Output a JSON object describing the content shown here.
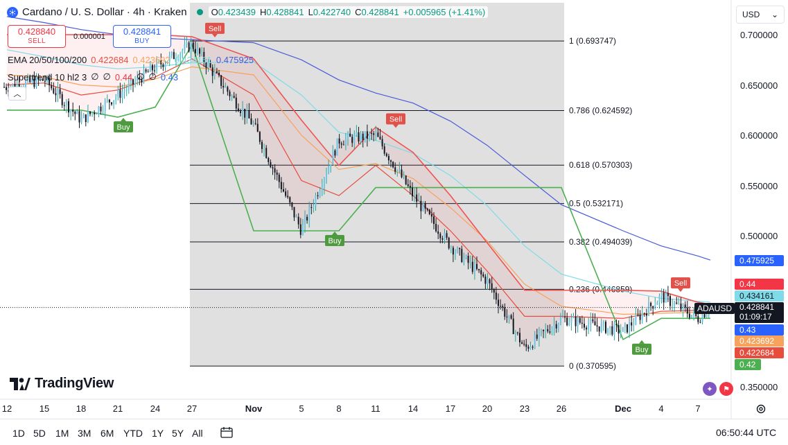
{
  "header": {
    "title": "Cardano / U. S. Dollar · 4h · Kraken",
    "ohlc": {
      "o_label": "O",
      "o_value": "0.423439",
      "h_label": "H",
      "h_value": "0.428841",
      "l_label": "L",
      "l_value": "0.422740",
      "c_label": "C",
      "c_value": "0.428841",
      "change": "+0.005965 (+1.41%)"
    }
  },
  "trade": {
    "sell_price": "0.428840",
    "sell_label": "SELL",
    "spread": "0.000001",
    "buy_price": "0.428841",
    "buy_label": "BUY"
  },
  "indicators": {
    "ema_name": "EMA 20/50/100/200",
    "ema_values": [
      "0.422684",
      "0.423692",
      "0.434161",
      "0.475925"
    ],
    "st_name": "Supertrend 10 hl2 3",
    "st_values": [
      "0.44",
      "0.43"
    ],
    "na_glyph": "∅"
  },
  "currency": {
    "label": "USD",
    "chevron": "⌄"
  },
  "price_axis": [
    "0.700000",
    "0.650000",
    "0.600000",
    "0.550000",
    "0.500000",
    "0.350000"
  ],
  "time_axis": [
    {
      "label": "12",
      "bold": false
    },
    {
      "label": "15",
      "bold": false
    },
    {
      "label": "18",
      "bold": false
    },
    {
      "label": "21",
      "bold": false
    },
    {
      "label": "24",
      "bold": false
    },
    {
      "label": "27",
      "bold": false
    },
    {
      "label": "Nov",
      "bold": true
    },
    {
      "label": "5",
      "bold": false
    },
    {
      "label": "8",
      "bold": false
    },
    {
      "label": "11",
      "bold": false
    },
    {
      "label": "14",
      "bold": false
    },
    {
      "label": "17",
      "bold": false
    },
    {
      "label": "20",
      "bold": false
    },
    {
      "label": "23",
      "bold": false
    },
    {
      "label": "26",
      "bold": false
    },
    {
      "label": "Dec",
      "bold": true
    },
    {
      "label": "4",
      "bold": false
    },
    {
      "label": "7",
      "bold": false
    }
  ],
  "price_tags": {
    "ema200": "0.475925",
    "st_up": "0.44",
    "ema100": "0.434161",
    "last": "0.428841",
    "symbol": "ADAUSD",
    "countdown": "01:09:17",
    "st_down": "0.43",
    "ema50": "0.423692",
    "ema20": "0.422684",
    "low": "0.42"
  },
  "logo": {
    "text": "TradingView"
  },
  "bottom_bar": {
    "ranges": [
      "1D",
      "5D",
      "1M",
      "3M",
      "6M",
      "YTD",
      "1Y",
      "5Y",
      "All"
    ],
    "clock": "06:50:44 UTC"
  },
  "colors": {
    "up": "#089981",
    "down": "#f23645",
    "ema20": "#e74c3c",
    "ema50": "#f7a35c",
    "ema100": "#7fdbe8",
    "ema200": "#4a5bd8",
    "st_up": "#4caf50",
    "st_down": "#ef5350",
    "accent": "#2962ff"
  },
  "chart_data": {
    "type": "line",
    "title": "Cardano / U. S. Dollar · 4h · Kraken",
    "xlabel": "",
    "ylabel": "",
    "ylim": [
      0.33,
      0.72
    ],
    "x": [
      "Oct 12",
      "Oct 15",
      "Oct 18",
      "Oct 21",
      "Oct 24",
      "Oct 27",
      "Nov 1",
      "Nov 5",
      "Nov 8",
      "Nov 11",
      "Nov 14",
      "Nov 17",
      "Nov 20",
      "Nov 23",
      "Nov 26",
      "Dec 1",
      "Dec 4",
      "Dec 7",
      "Dec 8"
    ],
    "series": [
      {
        "values": [
          0.648,
          0.655,
          0.615,
          0.64,
          0.668,
          0.69,
          0.61,
          0.505,
          0.595,
          0.6,
          0.54,
          0.49,
          0.455,
          0.388,
          0.418,
          0.405,
          0.44,
          0.418,
          0.4288
        ]
      },
      {
        "name": "EMA 20",
        "values": [
          0.65,
          0.652,
          0.64,
          0.645,
          0.658,
          0.676,
          0.64,
          0.555,
          0.54,
          0.57,
          0.54,
          0.505,
          0.465,
          0.42,
          0.42,
          0.418,
          0.425,
          0.426,
          0.422684
        ]
      },
      {
        "name": "EMA 50",
        "values": [
          0.66,
          0.658,
          0.65,
          0.648,
          0.656,
          0.668,
          0.66,
          0.6,
          0.566,
          0.572,
          0.557,
          0.528,
          0.495,
          0.452,
          0.43,
          0.422,
          0.423,
          0.424,
          0.423692
        ]
      },
      {
        "name": "EMA 100",
        "values": [
          0.685,
          0.678,
          0.67,
          0.666,
          0.668,
          0.672,
          0.673,
          0.64,
          0.603,
          0.595,
          0.582,
          0.56,
          0.53,
          0.49,
          0.462,
          0.445,
          0.438,
          0.435,
          0.434161
        ]
      },
      {
        "name": "EMA 200",
        "values": [
          0.718,
          0.712,
          0.705,
          0.7,
          0.697,
          0.695,
          0.692,
          0.675,
          0.655,
          0.642,
          0.632,
          0.614,
          0.59,
          0.56,
          0.531,
          0.505,
          0.49,
          0.48,
          0.475925
        ]
      }
    ],
    "fib_levels": [
      {
        "ratio": "1",
        "value": 0.693747,
        "label": "1 (0.693747)"
      },
      {
        "ratio": "0.786",
        "value": 0.624592,
        "label": "0.786 (0.624592)"
      },
      {
        "ratio": "0.618",
        "value": 0.570303,
        "label": "0.618 (0.570303)"
      },
      {
        "ratio": "0.5",
        "value": 0.532171,
        "label": "0.5 (0.532171)"
      },
      {
        "ratio": "0.382",
        "value": 0.494039,
        "label": "0.382 (0.494039)"
      },
      {
        "ratio": "0.236",
        "value": 0.446859,
        "label": "0.236 (0.446859)"
      },
      {
        "ratio": "0",
        "value": 0.370595,
        "label": "0 (0.370595)"
      }
    ],
    "signals": [
      {
        "type": "Sell",
        "x": "Oct 27",
        "price": 0.698
      },
      {
        "type": "Buy",
        "x": "Oct 22",
        "price": 0.618
      },
      {
        "type": "Buy",
        "x": "Nov 8",
        "price": 0.505
      },
      {
        "type": "Sell",
        "x": "Nov 12",
        "price": 0.608
      },
      {
        "type": "Sell",
        "x": "Dec 5",
        "price": 0.445
      },
      {
        "type": "Buy",
        "x": "Dec 2",
        "price": 0.397
      }
    ],
    "grid": false,
    "legend": "top-left"
  }
}
